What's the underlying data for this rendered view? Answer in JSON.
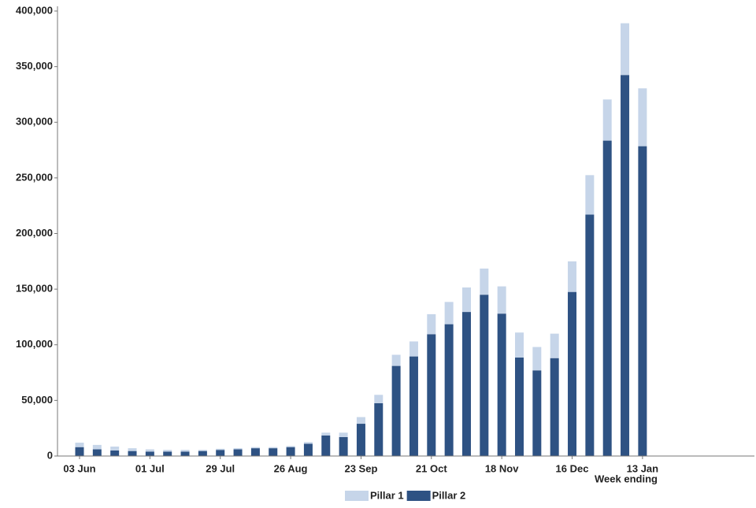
{
  "chart_data": {
    "type": "stacked-bar",
    "x_label": "Week ending",
    "categories": [
      "03 Jun",
      null,
      null,
      null,
      "01 Jul",
      null,
      null,
      null,
      "29 Jul",
      null,
      null,
      null,
      "26 Aug",
      null,
      null,
      null,
      "23 Sep",
      null,
      null,
      null,
      "21 Oct",
      null,
      null,
      null,
      "18 Nov",
      null,
      null,
      null,
      "16 Dec",
      null,
      null,
      null,
      "13 Jan"
    ],
    "series": [
      {
        "name": "Pillar 2",
        "color": "#2e5283",
        "values": [
          8000,
          6000,
          5000,
          4500,
          4000,
          4000,
          4000,
          4500,
          5500,
          6000,
          7000,
          7000,
          8000,
          11000,
          18500,
          17000,
          29000,
          47500,
          81000,
          89500,
          109500,
          118500,
          129500,
          145000,
          128000,
          88500,
          77000,
          88000,
          147500,
          217000,
          283500,
          342500,
          278500
        ]
      },
      {
        "name": "Pillar 1",
        "color": "#c6d5e9",
        "values": [
          4000,
          4000,
          3500,
          2500,
          2000,
          1500,
          1500,
          1000,
          1000,
          1000,
          1000,
          1000,
          1000,
          1500,
          2500,
          4000,
          6000,
          7500,
          10000,
          13500,
          18000,
          20000,
          22000,
          23500,
          24500,
          22500,
          21000,
          22000,
          27500,
          35500,
          37000,
          46500,
          52000
        ]
      }
    ],
    "ylim": [
      0,
      400000
    ],
    "yticks": [
      0,
      {
        "value": 50000,
        "label": "50,000"
      },
      {
        "value": 100000,
        "label": "100,000"
      },
      {
        "value": 150000,
        "label": "150,000"
      },
      {
        "value": 200000,
        "label": "200,000"
      },
      {
        "value": 250000,
        "label": "250,000"
      },
      {
        "value": 300000,
        "label": "300,000"
      },
      {
        "value": 350000,
        "label": "350,000"
      },
      {
        "value": 400000,
        "label": "400,000"
      }
    ],
    "grid": false,
    "legend": "bottom"
  }
}
